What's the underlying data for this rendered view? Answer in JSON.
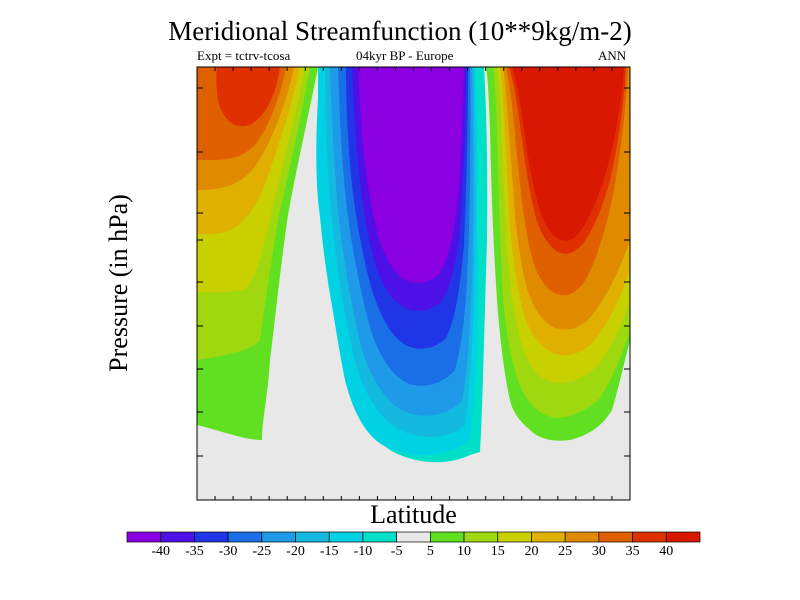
{
  "chart_data": {
    "type": "heatmap",
    "title": "Meridional Streamfunction (10**9kg/m-2)",
    "subtitle_left": "Expt = tctrv-tcosa",
    "subtitle_center": "04kyr BP - Europe",
    "subtitle_right": "ANN",
    "xlabel": "Latitude",
    "ylabel": "Pressure (in hPa)",
    "colorbar": {
      "labels": [
        "-40",
        "-35",
        "-30",
        "-25",
        "-20",
        "-15",
        "-10",
        "-5",
        "5",
        "10",
        "15",
        "20",
        "25",
        "30",
        "35",
        "40"
      ],
      "colors": [
        "#8a00e0",
        "#4d10e6",
        "#1f35e6",
        "#1a6ee6",
        "#1f9ae8",
        "#14b9e0",
        "#00d2e4",
        "#00e0c8",
        "#e8e8e8",
        "#60e020",
        "#a0d810",
        "#c8d000",
        "#e0b000",
        "#e08a00",
        "#e06000",
        "#e03000",
        "#d81800"
      ]
    },
    "regions": [
      {
        "name": "southern-positive-cell",
        "sign": "positive",
        "peak_level": "35",
        "position": "left"
      },
      {
        "name": "central-negative-cell",
        "sign": "negative",
        "peak_level": "-40",
        "position": "center"
      },
      {
        "name": "northern-positive-cell",
        "sign": "positive",
        "peak_level": "40",
        "position": "right"
      }
    ]
  }
}
